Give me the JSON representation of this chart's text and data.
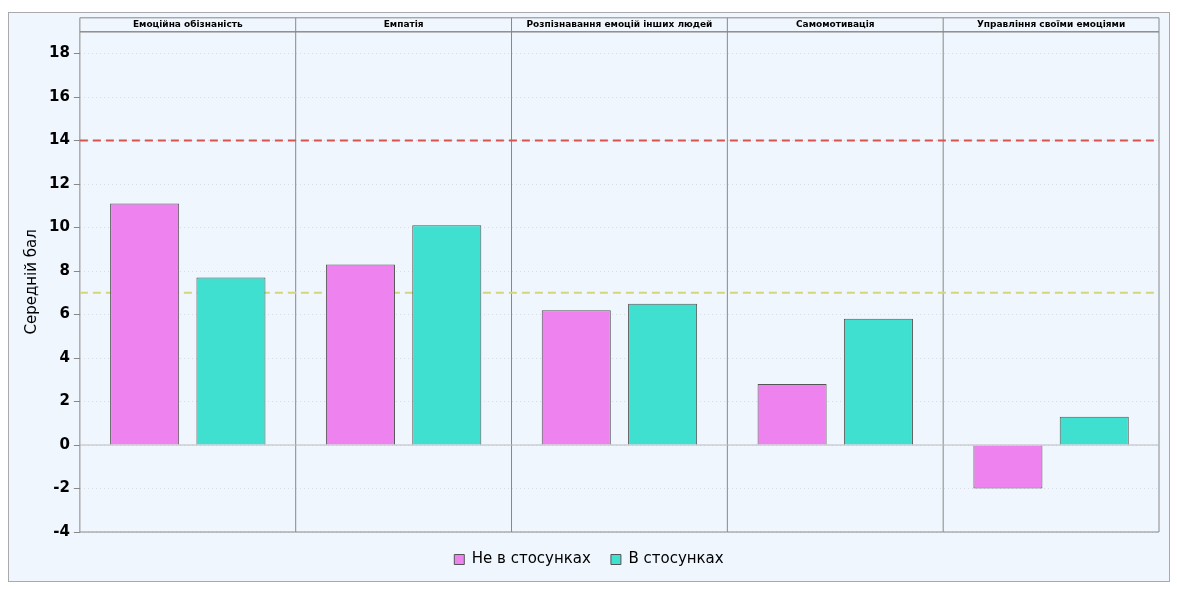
{
  "chart_data": {
    "type": "bar",
    "ylabel": "Середній бал",
    "categories": [
      "Емоційна обізнаність",
      "Емпатія",
      "Розпізнавання емоцій інших людей",
      "Самомотивація",
      "Управління своїми емоціями"
    ],
    "series": [
      {
        "name": "Не в стосунках",
        "color": "#ee82ee",
        "values": [
          11.1,
          8.3,
          6.2,
          2.8,
          -2.0
        ]
      },
      {
        "name": "В стосунках",
        "color": "#40e0d0",
        "values": [
          7.7,
          10.1,
          6.5,
          5.8,
          1.3
        ]
      }
    ],
    "ylim": [
      -4,
      19
    ],
    "yticks": [
      -4,
      -2,
      0,
      2,
      4,
      6,
      8,
      10,
      12,
      14,
      16,
      18
    ],
    "ref_lines": [
      {
        "axis": "y",
        "value": 14,
        "color": "#d9534f",
        "line_style": "dashed"
      },
      {
        "axis": "y",
        "value": 7,
        "color": "#d4d67a",
        "line_style": "dashed"
      }
    ],
    "grid": "y",
    "legend": "bottom"
  }
}
